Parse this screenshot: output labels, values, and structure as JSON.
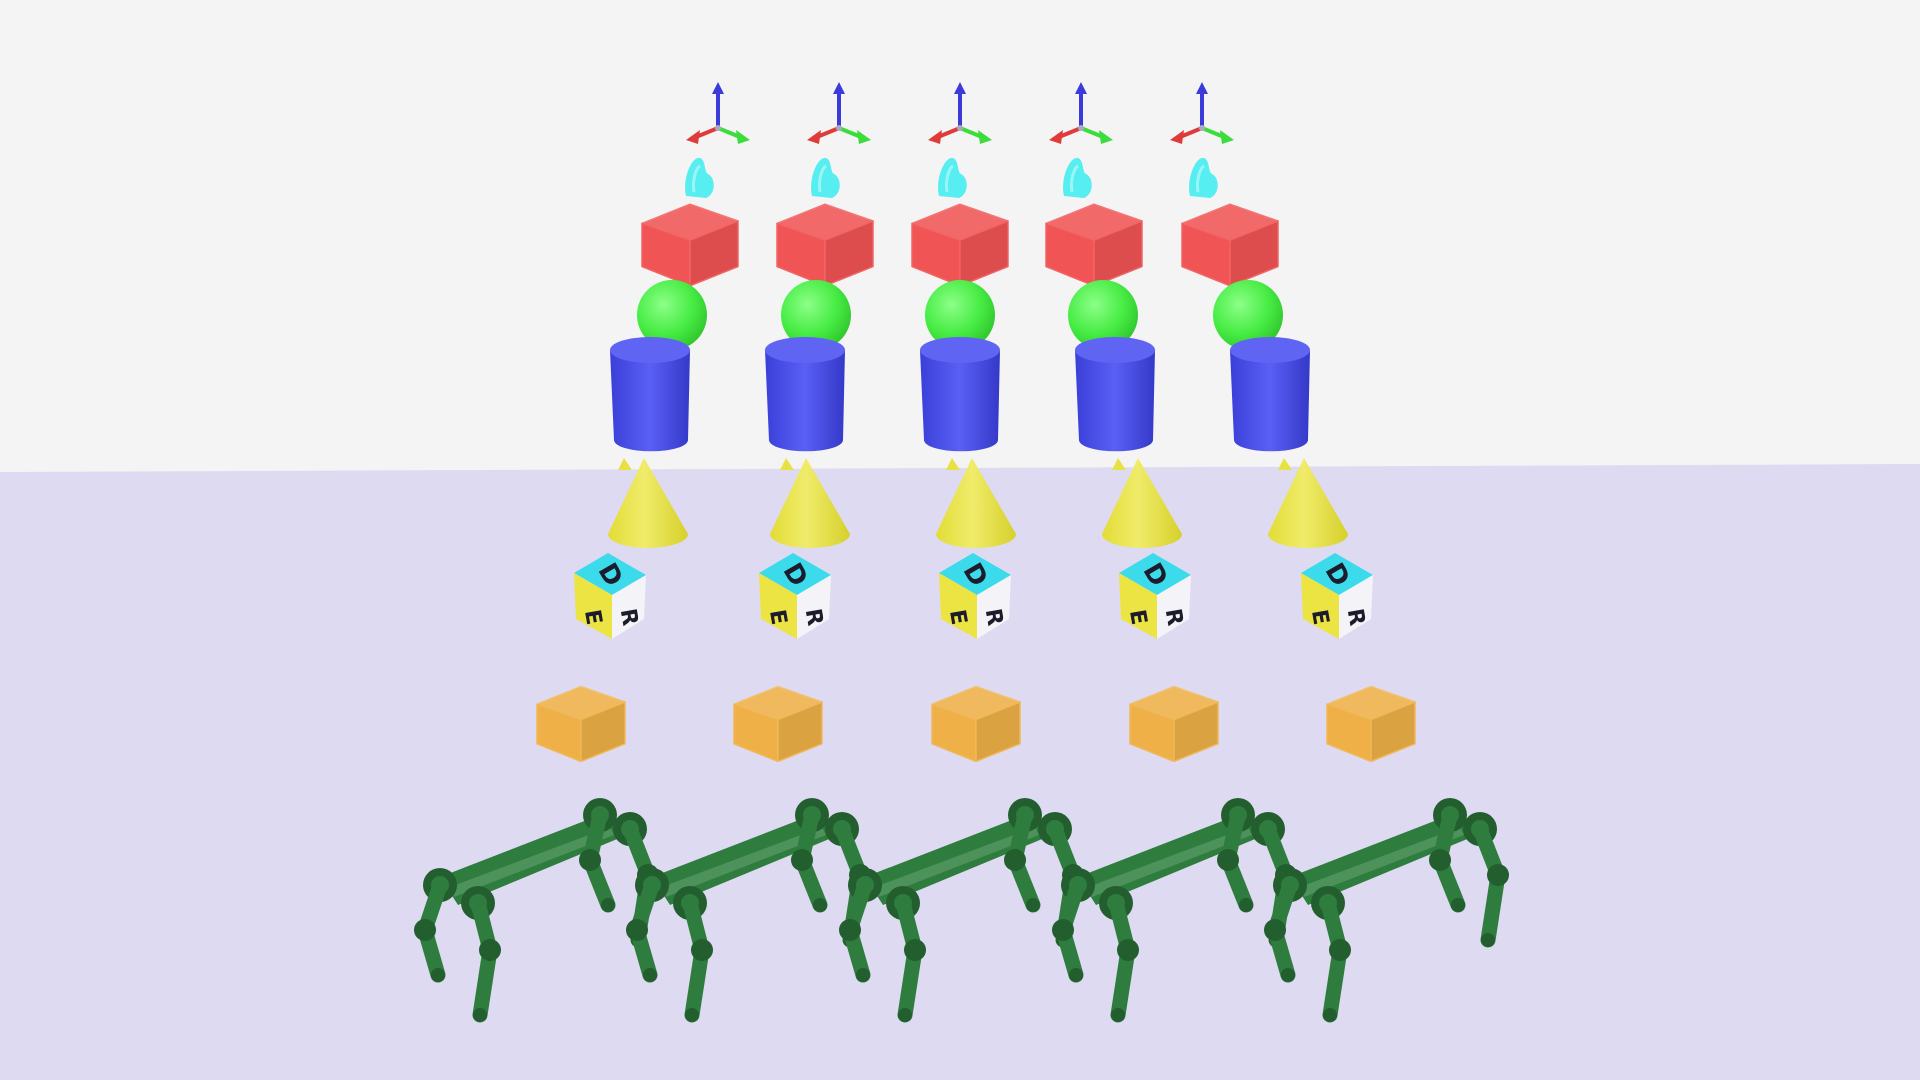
{
  "scene": {
    "background": {
      "sky_color": "#f4f4f5",
      "floor_color": "#dedaf1"
    },
    "columns": 5,
    "rows": [
      {
        "name": "axis-gizmo",
        "colors": {
          "x": "#e03b3b",
          "y": "#3bdc3b",
          "z": "#3b3bdc"
        }
      },
      {
        "name": "cyan-blob",
        "color": "#56eef0"
      },
      {
        "name": "red-cube",
        "color": "#f05454"
      },
      {
        "name": "green-sphere",
        "color": "#47ec44"
      },
      {
        "name": "blue-cylinder",
        "color": "#4a4ff0"
      },
      {
        "name": "yellow-cone",
        "color": "#e7e243"
      },
      {
        "name": "letter-cube",
        "letters": [
          "D",
          "E",
          "R"
        ],
        "colors": {
          "top": "#3bdbec",
          "left": "#ece443",
          "right": "#f4f4f8"
        }
      },
      {
        "name": "orange-cube",
        "color": "#eeb047"
      },
      {
        "name": "quadruped-robot",
        "color": "#2e7d3e"
      }
    ]
  }
}
